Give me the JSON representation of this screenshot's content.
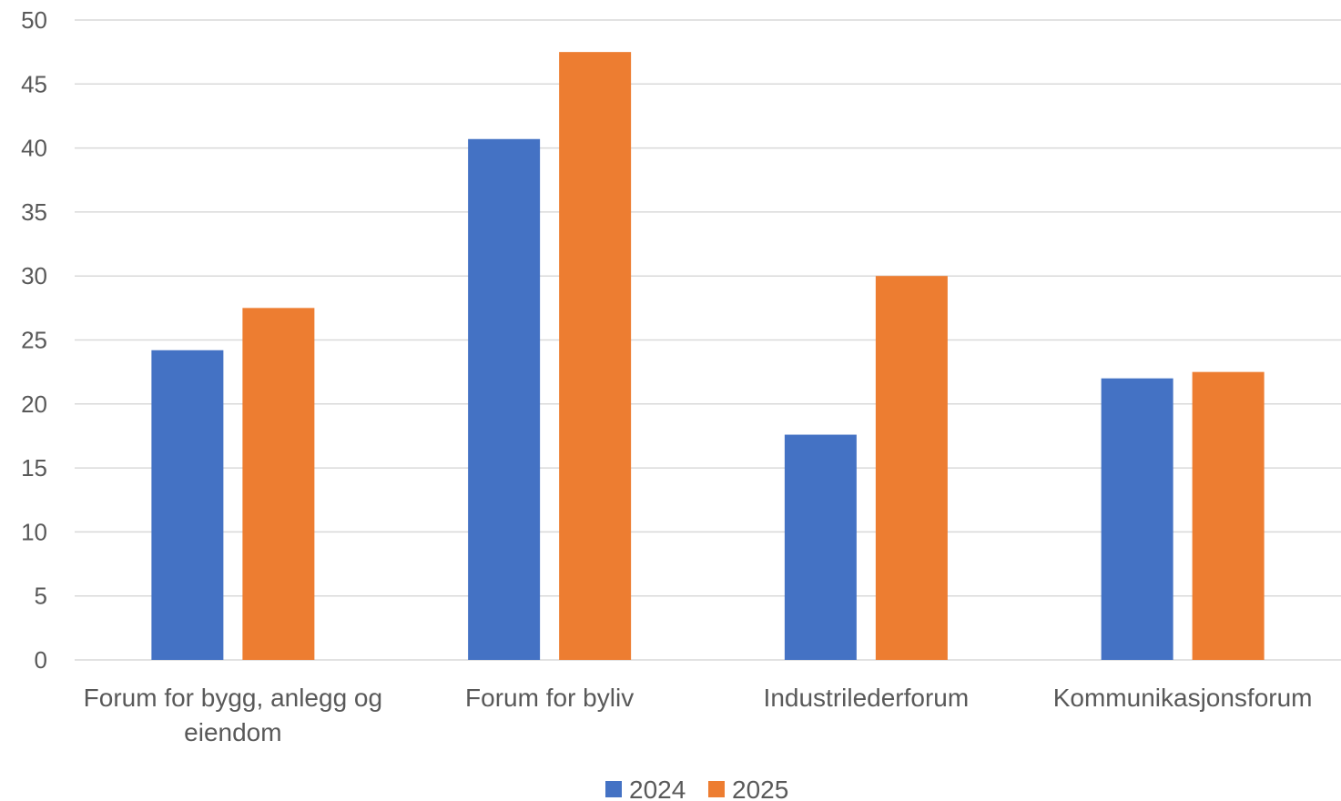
{
  "colors": {
    "series_2024": "#4472C4",
    "series_2025": "#ED7D31",
    "grid": "#D9D9D9",
    "text": "#595959"
  },
  "chart_data": {
    "type": "bar",
    "title": "",
    "xlabel": "",
    "ylabel": "",
    "ylim": [
      0,
      50
    ],
    "yticks": [
      0,
      5,
      10,
      15,
      20,
      25,
      30,
      35,
      40,
      45,
      50
    ],
    "grid": true,
    "legend_position": "bottom",
    "categories": [
      [
        "Forum for bygg, anlegg og",
        "eiendom"
      ],
      [
        "Forum for byliv"
      ],
      [
        "Industrilederforum"
      ],
      [
        "Kommunikasjonsforum"
      ]
    ],
    "series": [
      {
        "name": "2024",
        "color": "#4472C4",
        "values": [
          24.2,
          40.7,
          17.6,
          22.0
        ]
      },
      {
        "name": "2025",
        "color": "#ED7D31",
        "values": [
          27.5,
          47.5,
          30.0,
          22.5
        ]
      }
    ]
  }
}
